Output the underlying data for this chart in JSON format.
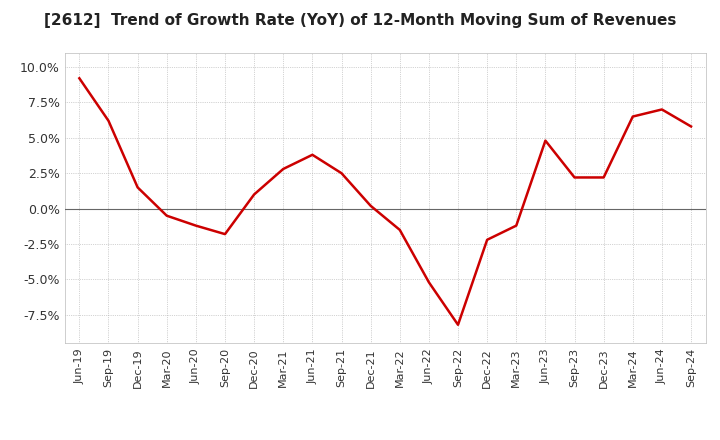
{
  "title": "[2612]  Trend of Growth Rate (YoY) of 12-Month Moving Sum of Revenues",
  "title_fontsize": 11,
  "line_color": "#cc0000",
  "background_color": "#ffffff",
  "grid_color": "#aaaaaa",
  "zero_line_color": "#666666",
  "ylim": [
    -9.5,
    11.0
  ],
  "yticks": [
    -7.5,
    -5.0,
    -2.5,
    0.0,
    2.5,
    5.0,
    7.5,
    10.0
  ],
  "x_labels": [
    "Jun-19",
    "Sep-19",
    "Dec-19",
    "Mar-20",
    "Jun-20",
    "Sep-20",
    "Dec-20",
    "Mar-21",
    "Jun-21",
    "Sep-21",
    "Dec-21",
    "Mar-22",
    "Jun-22",
    "Sep-22",
    "Dec-22",
    "Mar-23",
    "Jun-23",
    "Sep-23",
    "Dec-23",
    "Mar-24",
    "Jun-24",
    "Sep-24"
  ],
  "y_values": [
    9.2,
    6.2,
    1.5,
    -0.5,
    -1.2,
    -1.8,
    1.0,
    2.8,
    3.8,
    2.5,
    0.2,
    -1.5,
    -5.2,
    -8.2,
    -2.2,
    -1.2,
    4.8,
    2.2,
    2.2,
    6.5,
    7.0,
    5.8
  ]
}
